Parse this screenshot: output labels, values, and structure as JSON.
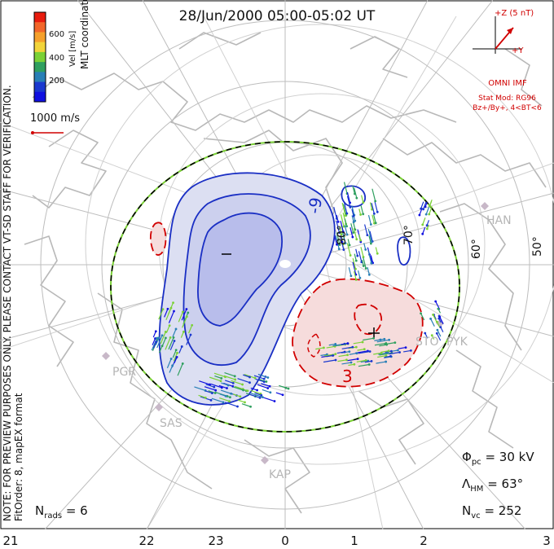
{
  "title": "28/Jun/2000 05:00-05:02 UT",
  "colorbar": {
    "label": "Vel [m/s]",
    "coord_label": "MLT coordinates",
    "ticks": [
      "600",
      "400",
      "200"
    ],
    "colors": [
      "#e81c0e",
      "#f2662a",
      "#f5a02b",
      "#f2d43a",
      "#7bd136",
      "#2f9f5f",
      "#287fb6",
      "#1a38cf",
      "#1010e0"
    ]
  },
  "reference_vector": "1000 m/s",
  "preview_note": "NOTE: FOR PREVIEW PURPOSES ONLY. PLEASE CONTACT VT-SD STAFF FOR VERIFICATION.",
  "fit_order": "FitOrder: 8, mapEX format",
  "imf": {
    "z_label": "+Z (5 nT)",
    "y_label": "+Y",
    "source": "OMNI IMF",
    "stat_mod": "Stat Mod: RG96",
    "condition": "Bz+/By+, 4<BT<6"
  },
  "stats": {
    "phi_symbol": "Φ",
    "phi_sub": "pc",
    "phi_value": "= 30 kV",
    "lambda_symbol": "Λ",
    "lambda_sub": "HM",
    "lambda_value": "= 63°",
    "nvc_symbol": "N",
    "nvc_sub": "vc",
    "nvc_value": "= 252",
    "nrads_symbol": "N",
    "nrads_sub": "rads",
    "nrads_value": "= 6"
  },
  "mlt_ticks": [
    "21",
    "22",
    "23",
    "0",
    "1",
    "2",
    "3"
  ],
  "latitude_labels": [
    "80°",
    "70°",
    "60°",
    "50°"
  ],
  "contour_labels": [
    "-9",
    "3",
    "-",
    "+"
  ],
  "radar_sites": [
    "HAN",
    "STO",
    "PYK",
    "PGR",
    "SAS",
    "KAP"
  ],
  "colors": {
    "negative_cell": "#1a2fc4",
    "positive_cell": "#d10000",
    "negative_fill": "#dcdff2",
    "positive_fill": "#f6dcdc",
    "grid": "#c8c8c8",
    "coast": "#b8b8b8"
  }
}
